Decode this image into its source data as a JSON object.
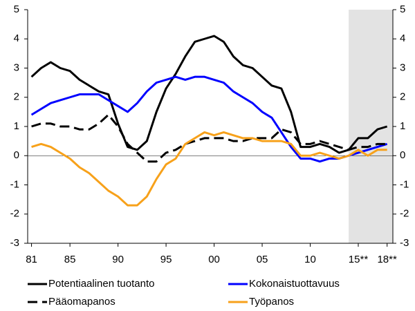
{
  "chart_data": {
    "type": "line",
    "x": [
      1981,
      1982,
      1983,
      1984,
      1985,
      1986,
      1987,
      1988,
      1989,
      1990,
      1991,
      1992,
      1993,
      1994,
      1995,
      1996,
      1997,
      1998,
      1999,
      2000,
      2001,
      2002,
      2003,
      2004,
      2005,
      2006,
      2007,
      2008,
      2009,
      2010,
      2011,
      2012,
      2013,
      2014,
      2015,
      2016,
      2017,
      2018
    ],
    "series": [
      {
        "name": "Potentiaalinen tuotanto",
        "color": "#000000",
        "dash": false,
        "values": [
          2.7,
          3.0,
          3.2,
          3.0,
          2.9,
          2.6,
          2.4,
          2.2,
          2.1,
          1.1,
          0.3,
          0.2,
          0.5,
          1.5,
          2.3,
          2.8,
          3.4,
          3.9,
          4.0,
          4.1,
          3.9,
          3.4,
          3.1,
          3.0,
          2.7,
          2.4,
          2.3,
          1.5,
          0.3,
          0.3,
          0.4,
          0.3,
          0.1,
          0.2,
          0.6,
          0.6,
          0.9,
          1.0
        ]
      },
      {
        "name": "Kokonaistuottavuus",
        "color": "#0000ff",
        "dash": false,
        "values": [
          1.4,
          1.6,
          1.8,
          1.9,
          2.0,
          2.1,
          2.1,
          2.1,
          1.9,
          1.7,
          1.5,
          1.8,
          2.2,
          2.5,
          2.6,
          2.7,
          2.6,
          2.7,
          2.7,
          2.6,
          2.5,
          2.2,
          2.0,
          1.8,
          1.5,
          1.3,
          0.8,
          0.3,
          -0.1,
          -0.1,
          -0.2,
          -0.1,
          -0.1,
          0.0,
          0.1,
          0.2,
          0.3,
          0.4
        ]
      },
      {
        "name": "Pääomapanos",
        "color": "#000000",
        "dash": true,
        "values": [
          1.0,
          1.1,
          1.1,
          1.0,
          1.0,
          0.9,
          0.9,
          1.1,
          1.4,
          1.0,
          0.4,
          0.1,
          -0.2,
          -0.2,
          0.1,
          0.2,
          0.4,
          0.5,
          0.6,
          0.6,
          0.6,
          0.5,
          0.5,
          0.6,
          0.6,
          0.6,
          0.9,
          0.8,
          0.4,
          0.4,
          0.5,
          0.4,
          0.3,
          0.2,
          0.3,
          0.3,
          0.4,
          0.4
        ]
      },
      {
        "name": "Työpanos",
        "color": "#f7a11a",
        "dash": false,
        "values": [
          0.3,
          0.4,
          0.3,
          0.1,
          -0.1,
          -0.4,
          -0.6,
          -0.9,
          -1.2,
          -1.4,
          -1.7,
          -1.7,
          -1.4,
          -0.8,
          -0.3,
          -0.1,
          0.4,
          0.6,
          0.8,
          0.7,
          0.8,
          0.7,
          0.6,
          0.6,
          0.5,
          0.5,
          0.5,
          0.4,
          0.0,
          0.0,
          0.1,
          0.0,
          -0.1,
          0.0,
          0.2,
          0.0,
          0.2,
          0.2
        ]
      }
    ],
    "xlim": [
      1980.6,
      2018.6
    ],
    "xticks": [
      {
        "value": 1981,
        "label": "81"
      },
      {
        "value": 1985,
        "label": "85"
      },
      {
        "value": 1990,
        "label": "90"
      },
      {
        "value": 1995,
        "label": "95"
      },
      {
        "value": 2000,
        "label": "00"
      },
      {
        "value": 2005,
        "label": "05"
      },
      {
        "value": 2010,
        "label": "10"
      },
      {
        "value": 2015,
        "label": "15**"
      },
      {
        "value": 2018,
        "label": "18**"
      }
    ],
    "ylim": [
      -3,
      5
    ],
    "yticks": [
      -3,
      -2,
      -1,
      0,
      1,
      2,
      3,
      4,
      5
    ],
    "y2lim": [
      -3,
      5
    ],
    "y2ticks": [
      -3,
      -2,
      -1,
      0,
      1,
      2,
      3,
      4,
      5
    ],
    "forecast_region": [
      2014,
      2018.6
    ],
    "forecast_color": "#e3e3e3"
  }
}
